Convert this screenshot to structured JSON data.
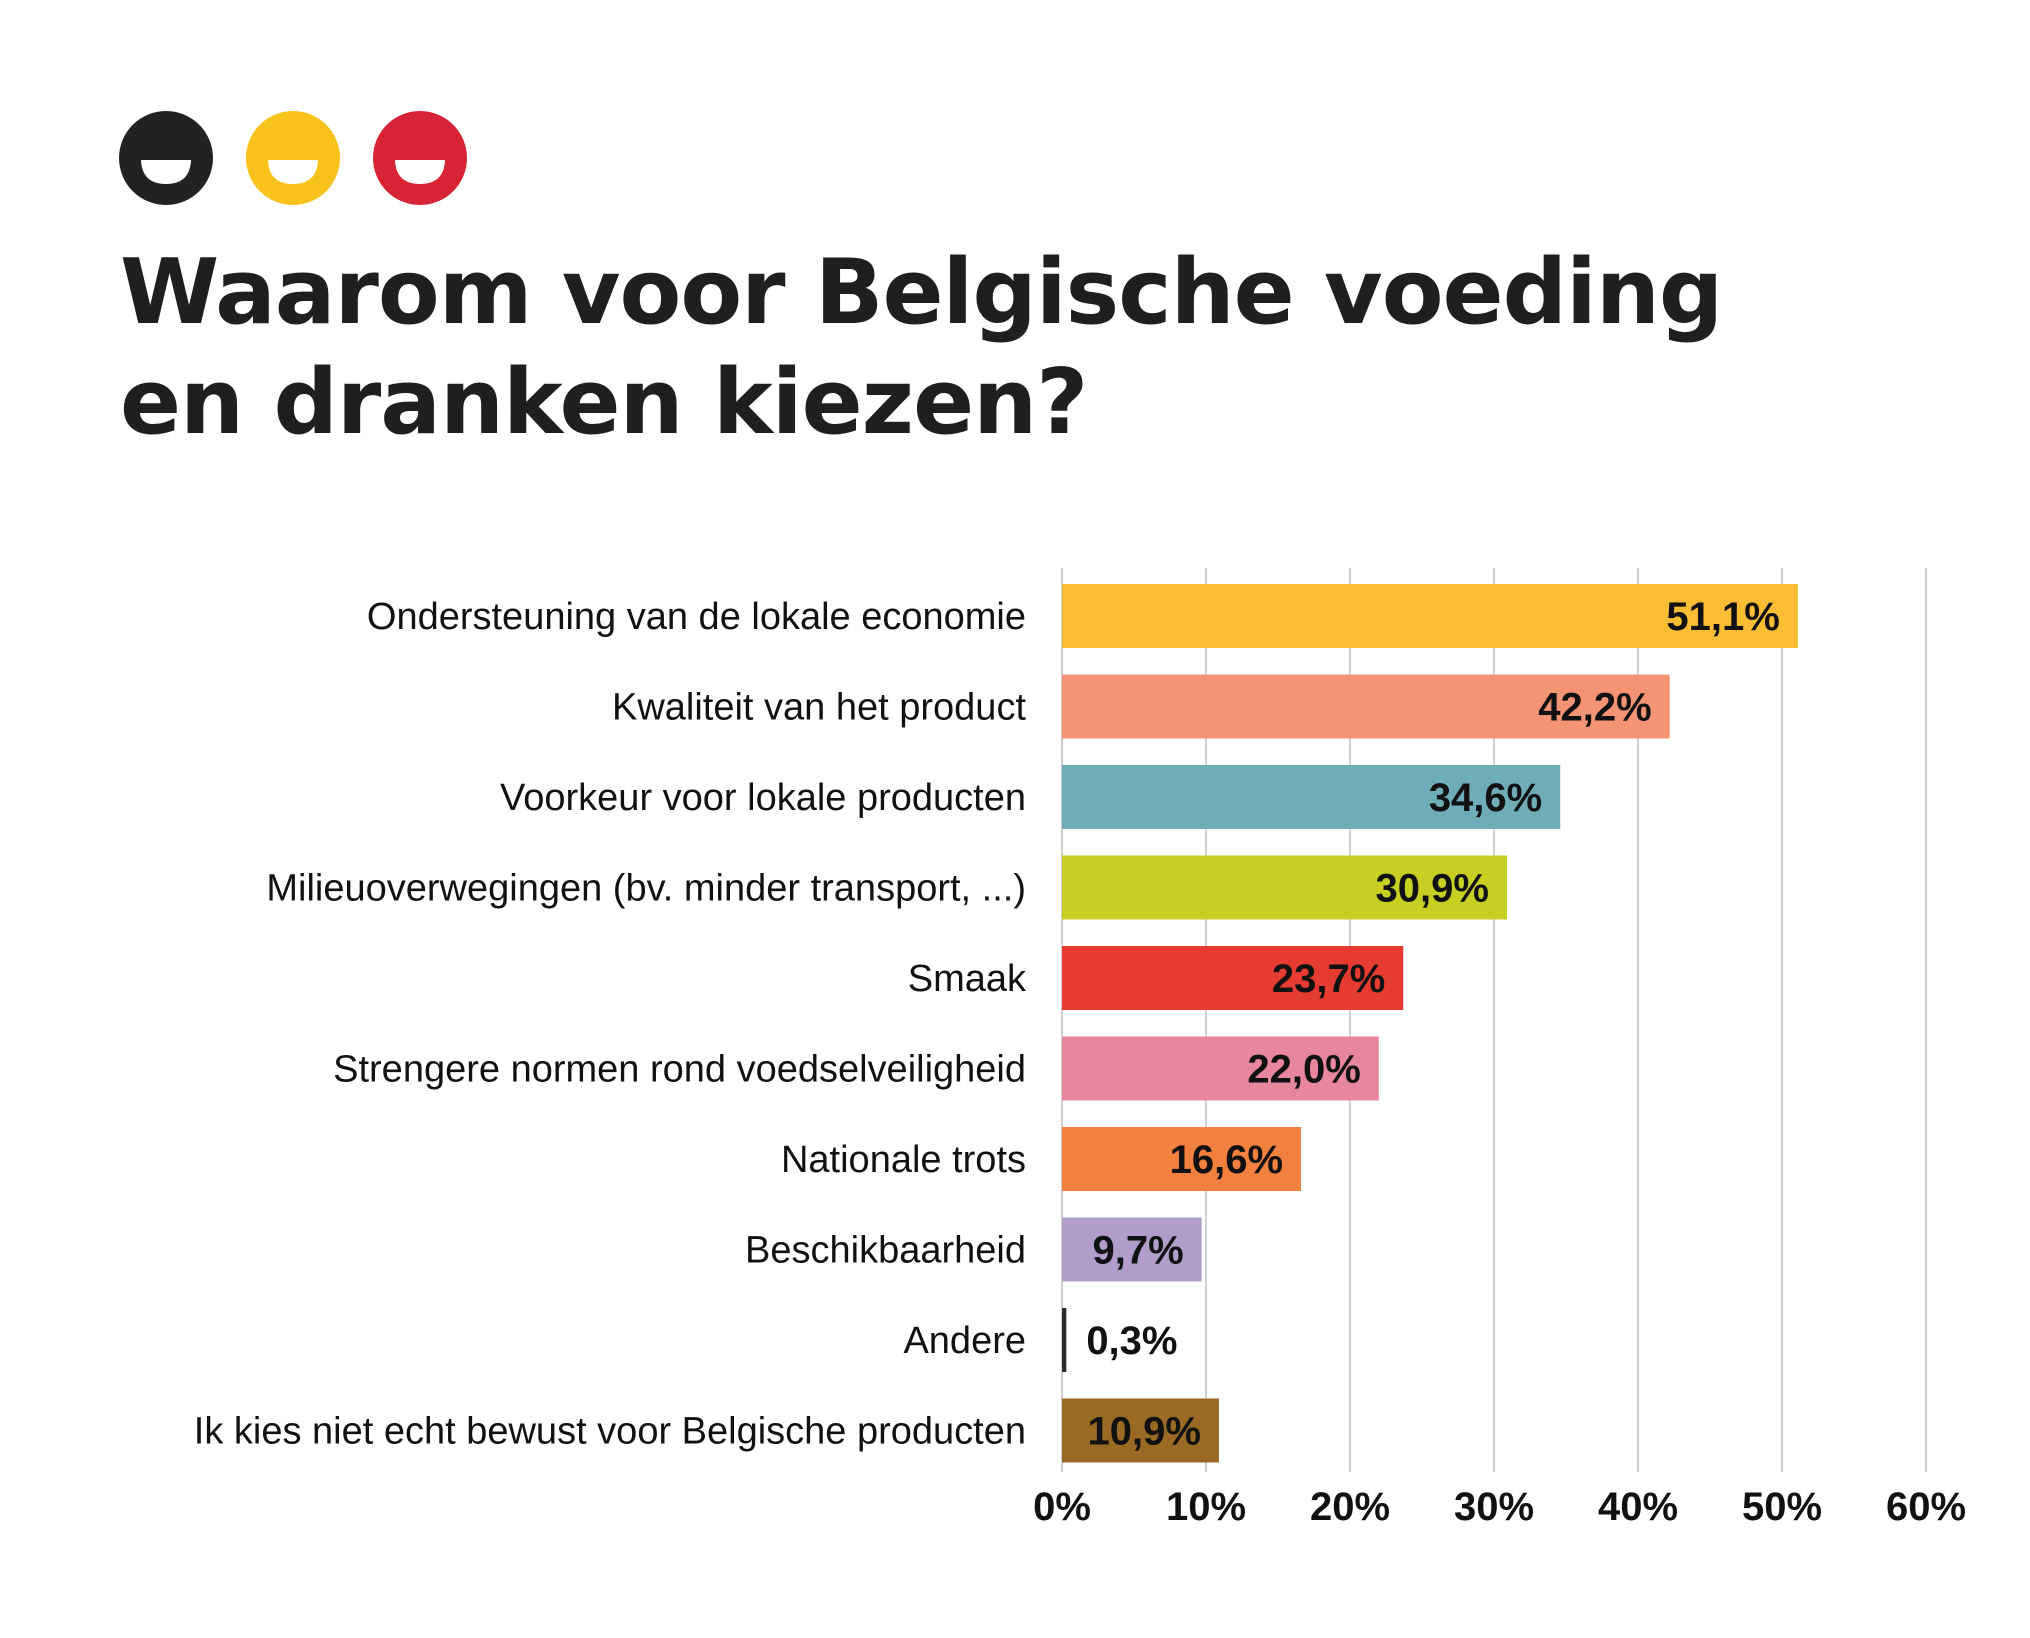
{
  "logo": {
    "icons": [
      {
        "name": "smiley-black-icon",
        "color": "#222222"
      },
      {
        "name": "smiley-yellow-icon",
        "color": "#f9c21b"
      },
      {
        "name": "smiley-red-icon",
        "color": "#d62435"
      }
    ]
  },
  "title": {
    "line1": "Waarom voor Belgische voeding",
    "line2": "en dranken kiezen?"
  },
  "chart_data": {
    "type": "bar",
    "orientation": "horizontal",
    "categories": [
      "Ondersteuning van de lokale economie",
      "Kwaliteit van het product",
      "Voorkeur voor lokale producten",
      "Milieuoverwegingen (bv. minder transport, ...)",
      "Smaak",
      "Strengere normen rond voedselveiligheid",
      "Nationale trots",
      "Beschikbaarheid",
      "Andere",
      "Ik kies niet echt bewust voor Belgische producten"
    ],
    "values": [
      51.1,
      42.2,
      34.6,
      30.9,
      23.7,
      22.0,
      16.6,
      9.7,
      0.3,
      10.9
    ],
    "value_labels": [
      "51,1%",
      "42,2%",
      "34,6%",
      "30,9%",
      "23,7%",
      "22,0%",
      "16,6%",
      "9,7%",
      "0,3%",
      "10,9%"
    ],
    "colors": [
      "#fbbd35",
      "#f49474",
      "#6eadb7",
      "#c6cf22",
      "#e53b31",
      "#e7869d",
      "#f2803f",
      "#b09dca",
      "#2a2a2a",
      "#9a6a24"
    ],
    "xlim": [
      0,
      60
    ],
    "xticks": [
      0,
      10,
      20,
      30,
      40,
      50,
      60
    ],
    "xtick_labels": [
      "0%",
      "10%",
      "20%",
      "30%",
      "40%",
      "50%",
      "60%"
    ],
    "grid": true,
    "legend": "none"
  }
}
